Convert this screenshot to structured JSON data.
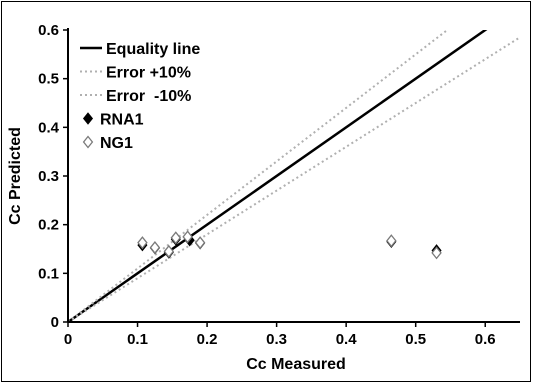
{
  "chart_data": {
    "type": "scatter",
    "xlabel": "Cc Measured",
    "ylabel": "Cc Predicted",
    "xlim": [
      0,
      0.65
    ],
    "ylim": [
      0,
      0.6
    ],
    "x_ticks": [
      "0",
      "0.1",
      "0.2",
      "0.3",
      "0.4",
      "0.5",
      "0.6"
    ],
    "y_ticks": [
      "0",
      "0.1",
      "0.2",
      "0.3",
      "0.4",
      "0.5",
      "0.6"
    ],
    "grid": false,
    "legend_position": "top-left",
    "lines": [
      {
        "name": "Equality line",
        "slope": 1.0,
        "color": "#000000",
        "style": "solid"
      },
      {
        "name": "Error +10%",
        "slope": 1.1,
        "color": "#b0b0b0",
        "style": "dotted"
      },
      {
        "name": "Error  -10%",
        "slope": 0.9,
        "color": "#b0b0b0",
        "style": "dotted"
      }
    ],
    "series": [
      {
        "name": "RNA1",
        "marker": "filled-diamond",
        "color": "#000000",
        "points": [
          {
            "x": 0.107,
            "y": 0.158
          },
          {
            "x": 0.125,
            "y": 0.152
          },
          {
            "x": 0.145,
            "y": 0.143
          },
          {
            "x": 0.155,
            "y": 0.17
          },
          {
            "x": 0.175,
            "y": 0.168
          },
          {
            "x": 0.19,
            "y": 0.162
          },
          {
            "x": 0.465,
            "y": 0.165
          },
          {
            "x": 0.53,
            "y": 0.147
          }
        ]
      },
      {
        "name": "NG1",
        "marker": "open-diamond",
        "color": "#000000",
        "points": [
          {
            "x": 0.107,
            "y": 0.163
          },
          {
            "x": 0.125,
            "y": 0.153
          },
          {
            "x": 0.145,
            "y": 0.145
          },
          {
            "x": 0.155,
            "y": 0.173
          },
          {
            "x": 0.172,
            "y": 0.175
          },
          {
            "x": 0.19,
            "y": 0.163
          },
          {
            "x": 0.465,
            "y": 0.167
          },
          {
            "x": 0.53,
            "y": 0.142
          }
        ]
      }
    ]
  }
}
